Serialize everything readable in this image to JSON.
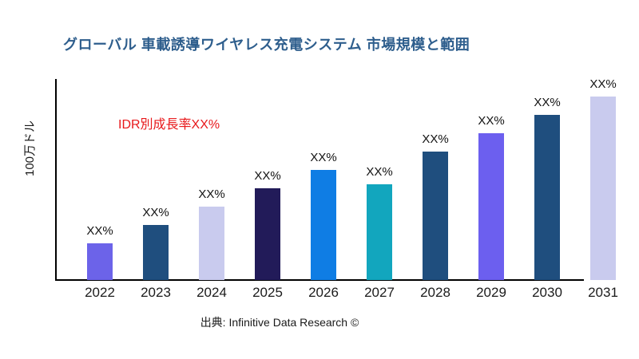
{
  "page": {
    "title": "グローバル 車載誘導ワイヤレス充電システム 市場規模と範囲",
    "title_color": "#2E5E8D",
    "source": "出典: Infinitive Data Research ©"
  },
  "annotation": {
    "growth_note": "IDR別成長率XX%",
    "color": "#E8181B"
  },
  "chart_data": {
    "type": "bar",
    "title": "グローバル 車載誘導ワイヤレス充電システム 市場規模と範囲",
    "xlabel": "",
    "ylabel": "100万ドル",
    "categories": [
      "2022",
      "2023",
      "2024",
      "2025",
      "2026",
      "2027",
      "2028",
      "2029",
      "2030",
      "2031"
    ],
    "values": [
      2.0,
      3.0,
      4.0,
      5.0,
      6.0,
      5.2,
      7.0,
      8.0,
      9.0,
      10.0
    ],
    "value_labels": [
      "XX%",
      "XX%",
      "XX%",
      "XX%",
      "XX%",
      "XX%",
      "XX%",
      "XX%",
      "XX%",
      "XX%"
    ],
    "bar_colors": [
      "#6C63E9",
      "#1F4E7E",
      "#C9CBEE",
      "#221B59",
      "#0F7DE4",
      "#12A6BE",
      "#1F4E7E",
      "#6C5FEF",
      "#1F4E7E",
      "#C9CBEE"
    ],
    "ylim": [
      0,
      10.9
    ],
    "grid": false,
    "legend": "none"
  }
}
